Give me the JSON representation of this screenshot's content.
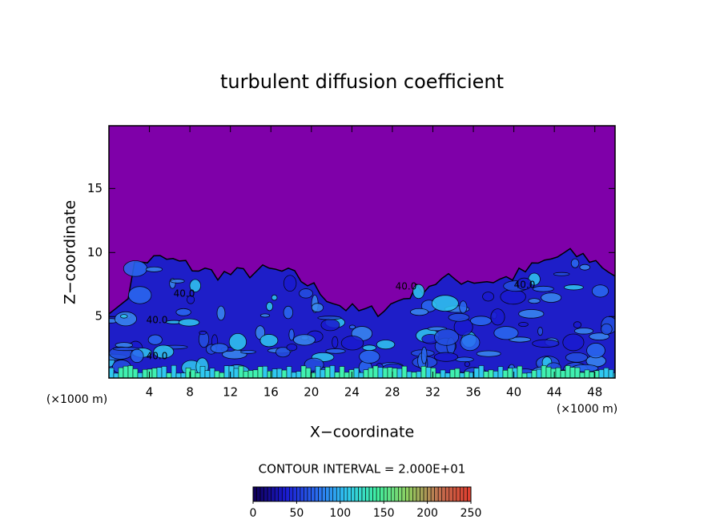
{
  "chart_data": {
    "type": "contour",
    "title": "turbulent diffusion coefficient",
    "xlabel": "X−coordinate",
    "ylabel": "Z−coordinate",
    "axis_unit": "(×1000 m)",
    "xlim": [
      0,
      50
    ],
    "xticks": [
      4,
      8,
      12,
      16,
      20,
      24,
      28,
      32,
      36,
      40,
      44,
      48
    ],
    "ylim": [
      0.2,
      19.9
    ],
    "yticks": [
      5,
      10,
      15
    ],
    "background_color": "#7f00a9",
    "contour_labels": [
      "40.0",
      "40.0",
      "40.0",
      "40.0",
      "40.0"
    ],
    "contour_interval_label": "CONTOUR INTERVAL = 2.000E+01",
    "colorbar": {
      "lim": [
        0,
        250
      ],
      "ticks": [
        0,
        50,
        100,
        150,
        200,
        250
      ],
      "colors": [
        "#10005a",
        "#1a1ad0",
        "#2a6af0",
        "#30c8f0",
        "#40f0a0",
        "#90d060",
        "#c07050",
        "#e04030"
      ]
    }
  }
}
